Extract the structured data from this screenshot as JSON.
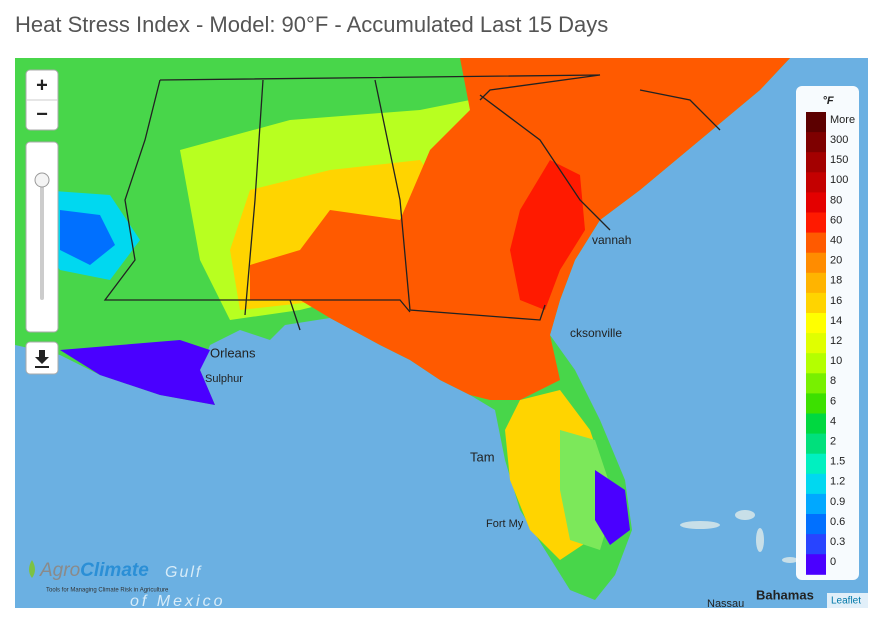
{
  "title": "Heat Stress Index - Model: 90°F - Accumulated Last 15 Days",
  "zoom_controls": {
    "zoom_in": "+",
    "zoom_out": "−"
  },
  "legend": {
    "unit": "°F",
    "items": [
      {
        "label": "More",
        "color": "#5c0000"
      },
      {
        "label": "300",
        "color": "#7e0000"
      },
      {
        "label": "150",
        "color": "#a30000"
      },
      {
        "label": "100",
        "color": "#c40000"
      },
      {
        "label": "80",
        "color": "#e40000"
      },
      {
        "label": "60",
        "color": "#ff1a00"
      },
      {
        "label": "40",
        "color": "#ff5a00"
      },
      {
        "label": "20",
        "color": "#ff8c00"
      },
      {
        "label": "18",
        "color": "#ffb400"
      },
      {
        "label": "16",
        "color": "#ffd400"
      },
      {
        "label": "14",
        "color": "#ffff00"
      },
      {
        "label": "12",
        "color": "#e0ff00"
      },
      {
        "label": "10",
        "color": "#b4ff00"
      },
      {
        "label": "8",
        "color": "#78f000"
      },
      {
        "label": "6",
        "color": "#3ce000"
      },
      {
        "label": "4",
        "color": "#00d840"
      },
      {
        "label": "2",
        "color": "#00e07c"
      },
      {
        "label": "1.5",
        "color": "#00f0c0"
      },
      {
        "label": "1.2",
        "color": "#00d8f0"
      },
      {
        "label": "0.9",
        "color": "#00a8ff"
      },
      {
        "label": "0.6",
        "color": "#0070ff"
      },
      {
        "label": "0.3",
        "color": "#2844ff"
      },
      {
        "label": "0",
        "color": "#4a00ff"
      }
    ]
  },
  "map_labels": [
    "Orleans",
    "Sulphur",
    "vannah",
    "cksonville",
    "Tam",
    "Fort My",
    "Nassau",
    "Bahamas"
  ],
  "water_label": {
    "line1": "Gulf",
    "line2": "of Mexico"
  },
  "logo": {
    "part1": "Agro",
    "part2": "Climate",
    "tagline": "Tools for Managing Climate Risk in Agriculture"
  },
  "attribution": "Leaflet"
}
